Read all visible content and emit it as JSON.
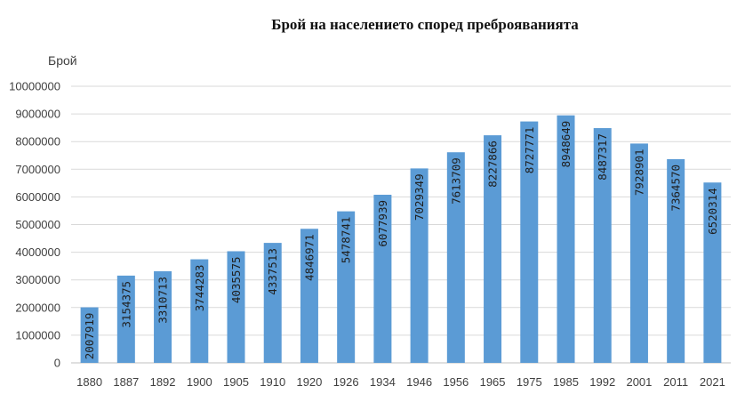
{
  "chart_data": {
    "type": "bar",
    "title": "Брой на населението според преброяванията",
    "ylabel": "Брой",
    "xlabel": "",
    "ylim": [
      0,
      10000000
    ],
    "yticks": [
      0,
      1000000,
      2000000,
      3000000,
      4000000,
      5000000,
      6000000,
      7000000,
      8000000,
      9000000,
      10000000
    ],
    "grid": true,
    "legend": "none",
    "bar_color": "#5b9bd5",
    "categories": [
      "1880",
      "1887",
      "1892",
      "1900",
      "1905",
      "1910",
      "1920",
      "1926",
      "1934",
      "1946",
      "1956",
      "1965",
      "1975",
      "1985",
      "1992",
      "2001",
      "2011",
      "2021"
    ],
    "values": [
      2007919,
      3154375,
      3310713,
      3744283,
      4035575,
      4337513,
      4846971,
      5478741,
      6077939,
      7029349,
      7613709,
      8227866,
      8727771,
      8948649,
      8487317,
      7928901,
      7364570,
      6520314
    ]
  }
}
